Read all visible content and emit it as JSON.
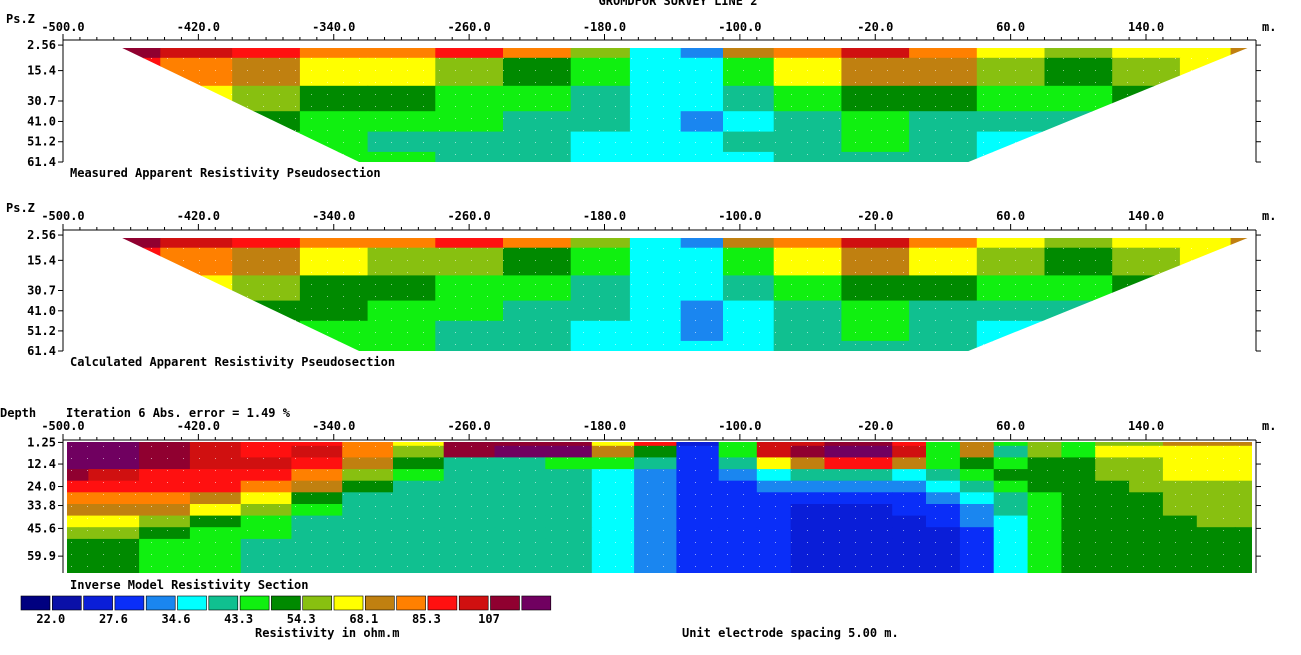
{
  "title": "GROMDFOR SURVEY LINE 2",
  "x_unit": "m.",
  "x_ticks": [
    -500.0,
    -420.0,
    -340.0,
    -260.0,
    -180.0,
    -100.0,
    -20.0,
    60.0,
    140.0
  ],
  "x_tick_labels": [
    "-500.0",
    "-420.0",
    "-340.0",
    "-260.0",
    "-180.0",
    "-100.0",
    "-20.0",
    "60.0",
    "140.0"
  ],
  "xlim": [
    -500.0,
    205.0
  ],
  "color_scale": {
    "colors": [
      "#000080",
      "#0a10a8",
      "#0a1ed8",
      "#0a2ef8",
      "#1a86f0",
      "#00ffff",
      "#10c090",
      "#10f010",
      "#008a00",
      "#88c010",
      "#ffff00",
      "#c08010",
      "#ff8000",
      "#ff1010",
      "#d01010",
      "#900030",
      "#700060"
    ],
    "labels": [
      "22.0",
      "27.6",
      "34.6",
      "43.3",
      "54.3",
      "68.1",
      "85.3",
      "107"
    ],
    "label_positions": [
      1,
      3,
      5,
      7,
      9,
      11,
      13,
      15
    ],
    "unit_label": "Resistivity in ohm.m"
  },
  "footer_note": "Unit electrode spacing 5.00 m.",
  "chart_data": [
    {
      "type": "heatmap",
      "title": "Measured Apparent Resistivity Pseudosection",
      "y_axis_label": "Ps.Z",
      "y_tick_labels": [
        "2.56",
        "15.4",
        "30.7",
        "41.0",
        "51.2",
        "61.4"
      ],
      "y_ticks": [
        2.56,
        15.4,
        30.7,
        41.0,
        51.2,
        61.4
      ],
      "ylim": [
        0,
        61.4
      ],
      "y_inverted": true,
      "x_extent_top": [
        -465,
        200
      ],
      "x_extent_bottom": [
        -325,
        35
      ],
      "columns": [
        -465,
        -420,
        -380,
        -340,
        -300,
        -260,
        -220,
        -180,
        -150,
        -120,
        -100,
        -60,
        -20,
        20,
        60,
        100,
        140,
        180,
        200
      ],
      "rows": [
        2.56,
        15.4,
        30.7,
        41.0,
        51.2,
        61.4
      ],
      "level_grid": [
        [
          15,
          14,
          13,
          12,
          12,
          13,
          12,
          9,
          5,
          4,
          11,
          12,
          14,
          12,
          10,
          9,
          10,
          10,
          11
        ],
        [
          13,
          12,
          11,
          10,
          10,
          9,
          8,
          7,
          5,
          5,
          7,
          10,
          11,
          11,
          9,
          8,
          9,
          10,
          10
        ],
        [
          11,
          10,
          9,
          8,
          8,
          7,
          7,
          6,
          5,
          5,
          6,
          7,
          8,
          8,
          7,
          7,
          8,
          9,
          9
        ],
        [
          9,
          9,
          8,
          7,
          7,
          7,
          6,
          6,
          5,
          4,
          5,
          6,
          7,
          6,
          6,
          6,
          7,
          8,
          8
        ],
        [
          8,
          8,
          7,
          7,
          6,
          6,
          6,
          5,
          5,
          5,
          6,
          6,
          7,
          6,
          5,
          6,
          7,
          8,
          8
        ],
        [
          8,
          8,
          7,
          7,
          7,
          6,
          6,
          5,
          5,
          5,
          5,
          6,
          6,
          6,
          5,
          6,
          7,
          8,
          8
        ]
      ]
    },
    {
      "type": "heatmap",
      "title": "Calculated Apparent Resistivity Pseudosection",
      "y_axis_label": "Ps.Z",
      "y_tick_labels": [
        "2.56",
        "15.4",
        "30.7",
        "41.0",
        "51.2",
        "61.4"
      ],
      "y_ticks": [
        2.56,
        15.4,
        30.7,
        41.0,
        51.2,
        61.4
      ],
      "ylim": [
        0,
        61.4
      ],
      "y_inverted": true,
      "x_extent_top": [
        -465,
        200
      ],
      "x_extent_bottom": [
        -325,
        35
      ],
      "columns": [
        -465,
        -420,
        -380,
        -340,
        -300,
        -260,
        -220,
        -180,
        -150,
        -120,
        -100,
        -60,
        -20,
        20,
        60,
        100,
        140,
        180,
        200
      ],
      "rows": [
        2.56,
        15.4,
        30.7,
        41.0,
        51.2,
        61.4
      ],
      "level_grid": [
        [
          15,
          14,
          13,
          12,
          12,
          13,
          12,
          9,
          5,
          4,
          11,
          12,
          14,
          12,
          10,
          9,
          10,
          10,
          11
        ],
        [
          13,
          12,
          11,
          10,
          9,
          9,
          8,
          7,
          5,
          5,
          7,
          10,
          11,
          10,
          9,
          8,
          9,
          10,
          10
        ],
        [
          11,
          10,
          9,
          8,
          8,
          7,
          7,
          6,
          5,
          5,
          6,
          7,
          8,
          8,
          7,
          7,
          8,
          9,
          9
        ],
        [
          9,
          9,
          8,
          8,
          7,
          7,
          6,
          6,
          5,
          4,
          5,
          6,
          7,
          6,
          6,
          6,
          7,
          8,
          8
        ],
        [
          8,
          8,
          8,
          7,
          7,
          6,
          6,
          5,
          5,
          4,
          5,
          6,
          7,
          6,
          5,
          6,
          7,
          8,
          8
        ],
        [
          8,
          8,
          8,
          7,
          7,
          6,
          6,
          5,
          5,
          5,
          5,
          6,
          6,
          6,
          5,
          6,
          7,
          8,
          8
        ]
      ]
    },
    {
      "type": "heatmap",
      "title": "Inverse Model Resistivity Section",
      "y_axis_label": "Depth",
      "header_note": "Iteration 6 Abs. error = 1.49 %",
      "y_tick_labels": [
        "1.25",
        "12.4",
        "24.0",
        "33.8",
        "45.6",
        "59.9"
      ],
      "y_ticks": [
        1.25,
        12.4,
        24.0,
        33.8,
        45.6,
        59.9
      ],
      "ylim": [
        0,
        68.6
      ],
      "y_inverted": true,
      "columns": [
        -500,
        -470,
        -440,
        -410,
        -380,
        -350,
        -320,
        -290,
        -260,
        -230,
        -200,
        -175,
        -150,
        -125,
        -100,
        -80,
        -60,
        -40,
        -20,
        0,
        20,
        40,
        60,
        80,
        100,
        120,
        140,
        160,
        180,
        205
      ],
      "rows": [
        0,
        6,
        12,
        18,
        24,
        30,
        36,
        42,
        48,
        54,
        60,
        66
      ],
      "level_grid": [
        [
          16,
          16,
          15,
          14,
          13,
          13,
          12,
          10,
          15,
          15,
          15,
          10,
          13,
          2,
          7,
          14,
          14,
          15,
          15,
          13,
          7,
          11,
          7,
          9,
          7,
          9,
          9,
          11,
          11,
          11
        ],
        [
          16,
          16,
          15,
          14,
          13,
          14,
          12,
          9,
          15,
          16,
          16,
          11,
          8,
          3,
          7,
          14,
          15,
          16,
          16,
          14,
          7,
          11,
          6,
          9,
          7,
          10,
          10,
          10,
          10,
          10
        ],
        [
          16,
          16,
          15,
          14,
          14,
          13,
          11,
          8,
          6,
          6,
          7,
          7,
          6,
          3,
          6,
          10,
          11,
          13,
          13,
          11,
          7,
          8,
          7,
          8,
          8,
          9,
          9,
          10,
          10,
          10
        ],
        [
          15,
          14,
          13,
          13,
          13,
          12,
          9,
          7,
          6,
          6,
          6,
          5,
          4,
          3,
          4,
          5,
          6,
          6,
          6,
          5,
          6,
          7,
          8,
          8,
          8,
          9,
          9,
          10,
          10,
          10
        ],
        [
          13,
          13,
          13,
          13,
          12,
          11,
          8,
          6,
          6,
          6,
          6,
          5,
          4,
          3,
          3,
          4,
          4,
          4,
          4,
          4,
          5,
          6,
          7,
          8,
          8,
          8,
          9,
          9,
          9,
          9
        ],
        [
          12,
          12,
          12,
          11,
          10,
          8,
          6,
          6,
          6,
          6,
          6,
          5,
          4,
          3,
          3,
          3,
          3,
          3,
          3,
          3,
          4,
          5,
          6,
          7,
          8,
          8,
          8,
          9,
          9,
          9
        ],
        [
          11,
          11,
          11,
          10,
          9,
          7,
          6,
          6,
          6,
          6,
          6,
          5,
          4,
          3,
          3,
          3,
          2,
          2,
          2,
          3,
          3,
          4,
          6,
          7,
          8,
          8,
          8,
          9,
          9,
          9
        ],
        [
          10,
          10,
          9,
          8,
          7,
          6,
          6,
          6,
          6,
          6,
          6,
          5,
          4,
          3,
          3,
          3,
          2,
          2,
          2,
          2,
          3,
          4,
          5,
          7,
          8,
          8,
          8,
          8,
          9,
          9
        ],
        [
          9,
          9,
          8,
          7,
          7,
          6,
          6,
          6,
          6,
          6,
          6,
          5,
          4,
          3,
          3,
          3,
          2,
          2,
          2,
          2,
          2,
          3,
          5,
          7,
          8,
          8,
          8,
          8,
          8,
          8
        ],
        [
          8,
          8,
          7,
          7,
          6,
          6,
          6,
          6,
          6,
          6,
          6,
          5,
          4,
          3,
          3,
          3,
          2,
          2,
          2,
          2,
          2,
          3,
          5,
          7,
          8,
          8,
          8,
          8,
          8,
          8
        ],
        [
          8,
          8,
          7,
          7,
          6,
          6,
          6,
          6,
          6,
          6,
          6,
          5,
          4,
          3,
          3,
          3,
          2,
          2,
          2,
          2,
          2,
          3,
          5,
          7,
          8,
          8,
          8,
          8,
          8,
          8
        ],
        [
          8,
          8,
          7,
          7,
          6,
          6,
          6,
          6,
          6,
          6,
          6,
          5,
          4,
          3,
          3,
          3,
          2,
          2,
          2,
          2,
          2,
          3,
          5,
          7,
          8,
          8,
          8,
          8,
          8,
          8
        ]
      ]
    }
  ]
}
